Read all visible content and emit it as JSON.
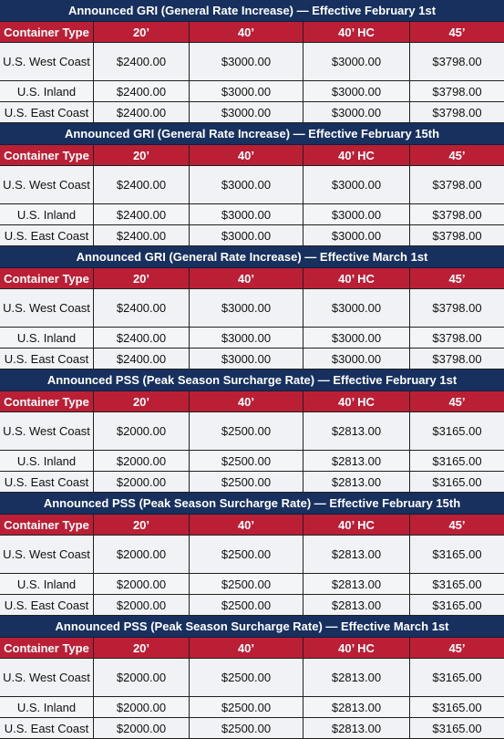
{
  "columns": [
    "Container Type",
    "20’",
    "40’",
    "40’ HC",
    "45’"
  ],
  "sections": [
    {
      "title": "Announced GRI  (General Rate Increase) — Effective February 1st",
      "rows": [
        {
          "label": "U.S. West Coast",
          "values": [
            "$2400.00",
            "$3000.00",
            "$3000.00",
            "$3798.00"
          ]
        },
        {
          "label": "U.S. Inland",
          "values": [
            "$2400.00",
            "$3000.00",
            "$3000.00",
            "$3798.00"
          ]
        },
        {
          "label": "U.S. East Coast",
          "values": [
            "$2400.00",
            "$3000.00",
            "$3000.00",
            "$3798.00"
          ]
        }
      ]
    },
    {
      "title": "Announced GRI (General Rate Increase) — Effective February 15th",
      "rows": [
        {
          "label": "U.S. West Coast",
          "values": [
            "$2400.00",
            "$3000.00",
            "$3000.00",
            "$3798.00"
          ]
        },
        {
          "label": "U.S. Inland",
          "values": [
            "$2400.00",
            "$3000.00",
            "$3000.00",
            "$3798.00"
          ]
        },
        {
          "label": "U.S. East Coast",
          "values": [
            "$2400.00",
            "$3000.00",
            "$3000.00",
            "$3798.00"
          ]
        }
      ]
    },
    {
      "title": "Announced GRI  (General Rate Increase) — Effective March 1st",
      "rows": [
        {
          "label": "U.S. West Coast",
          "values": [
            "$2400.00",
            "$3000.00",
            "$3000.00",
            "$3798.00"
          ]
        },
        {
          "label": "U.S. Inland",
          "values": [
            "$2400.00",
            "$3000.00",
            "$3000.00",
            "$3798.00"
          ]
        },
        {
          "label": "U.S. East Coast",
          "values": [
            "$2400.00",
            "$3000.00",
            "$3000.00",
            "$3798.00"
          ]
        }
      ]
    },
    {
      "title": "Announced PSS  (Peak Season Surcharge Rate) — Effective February 1st",
      "rows": [
        {
          "label": "U.S. West Coast",
          "values": [
            "$2000.00",
            "$2500.00",
            "$2813.00",
            "$3165.00"
          ]
        },
        {
          "label": "U.S. Inland",
          "values": [
            "$2000.00",
            "$2500.00",
            "$2813.00",
            "$3165.00"
          ]
        },
        {
          "label": "U.S. East Coast",
          "values": [
            "$2000.00",
            "$2500.00",
            "$2813.00",
            "$3165.00"
          ]
        }
      ]
    },
    {
      "title": "Announced PSS  (Peak Season Surcharge Rate) — Effective February 15th",
      "rows": [
        {
          "label": "U.S. West Coast",
          "values": [
            "$2000.00",
            "$2500.00",
            "$2813.00",
            "$3165.00"
          ]
        },
        {
          "label": "U.S. Inland",
          "values": [
            "$2000.00",
            "$2500.00",
            "$2813.00",
            "$3165.00"
          ]
        },
        {
          "label": "U.S. East Coast",
          "values": [
            "$2000.00",
            "$2500.00",
            "$2813.00",
            "$3165.00"
          ]
        }
      ]
    },
    {
      "title": "Announced PSS  (Peak Season Surcharge Rate) — Effective March 1st",
      "rows": [
        {
          "label": "U.S. West Coast",
          "values": [
            "$2000.00",
            "$2500.00",
            "$2813.00",
            "$3165.00"
          ]
        },
        {
          "label": "U.S. Inland",
          "values": [
            "$2000.00",
            "$2500.00",
            "$2813.00",
            "$3165.00"
          ]
        },
        {
          "label": "U.S. East Coast",
          "values": [
            "$2000.00",
            "$2500.00",
            "$2813.00",
            "$3165.00"
          ]
        }
      ]
    }
  ],
  "colors": {
    "title_bar": "#17305e",
    "header_row": "#bb1f35",
    "cell_background": "#f4f5f7",
    "grid_lines": "#202020"
  }
}
